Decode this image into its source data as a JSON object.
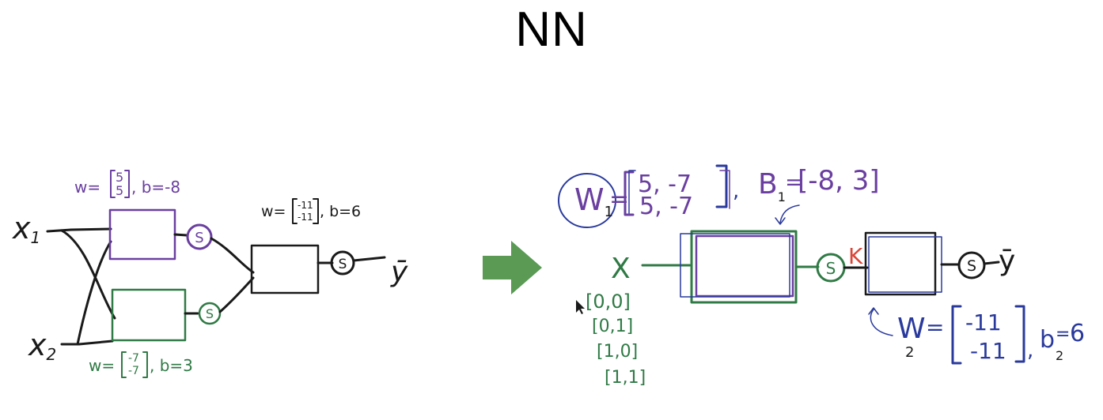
{
  "title": "NN",
  "colors": {
    "ink": "#1a1a1a",
    "purple": "#6a3fa0",
    "green": "#2f7a45",
    "blue": "#2a3a9c",
    "red": "#d9473a",
    "arrow": "#5a9a55"
  },
  "left_network": {
    "input_1": {
      "base": "x",
      "sub": "1"
    },
    "input_2": {
      "base": "x",
      "sub": "2"
    },
    "neuron_top_label": "w=[5 5], b=-8",
    "neuron_top": {
      "w_lead": "w=",
      "w_vals": [
        "5",
        "5"
      ],
      "tail": ", b=-8"
    },
    "neuron_bottom_label": "w=[-7 -7], b=3",
    "neuron_bottom": {
      "w_lead": "w=",
      "w_vals": [
        "-7",
        "-7"
      ],
      "tail": ", b=3"
    },
    "neuron_out_label": "w=[-11 -11], b=6",
    "neuron_out": {
      "w_lead": "w=",
      "w_vals": [
        "-11",
        "-11"
      ],
      "tail": ", b=6"
    },
    "sigmoid_symbol": "S",
    "output": "ȳ"
  },
  "transition_arrow": "→",
  "right_network": {
    "input": "X",
    "w1": {
      "base": "W",
      "sub": "1",
      "eq": "=",
      "row1": "5, -7",
      "row2": "5, -7"
    },
    "b1": {
      "base": "B",
      "sub": "1",
      "eq": "=",
      "value": "[-8, 3]"
    },
    "k_label": "K",
    "sigmoid_symbol": "S",
    "output": "ȳ",
    "w2": {
      "base": "W",
      "sub": "2",
      "eq": "=",
      "row1": "-11",
      "row2": "-11"
    },
    "b2": {
      "base": "b",
      "sub": "2",
      "eq": "=",
      "value": "6"
    },
    "x_rows": [
      "[0,0]",
      "[0,1]",
      "[1,0]",
      "[1,1]"
    ]
  }
}
